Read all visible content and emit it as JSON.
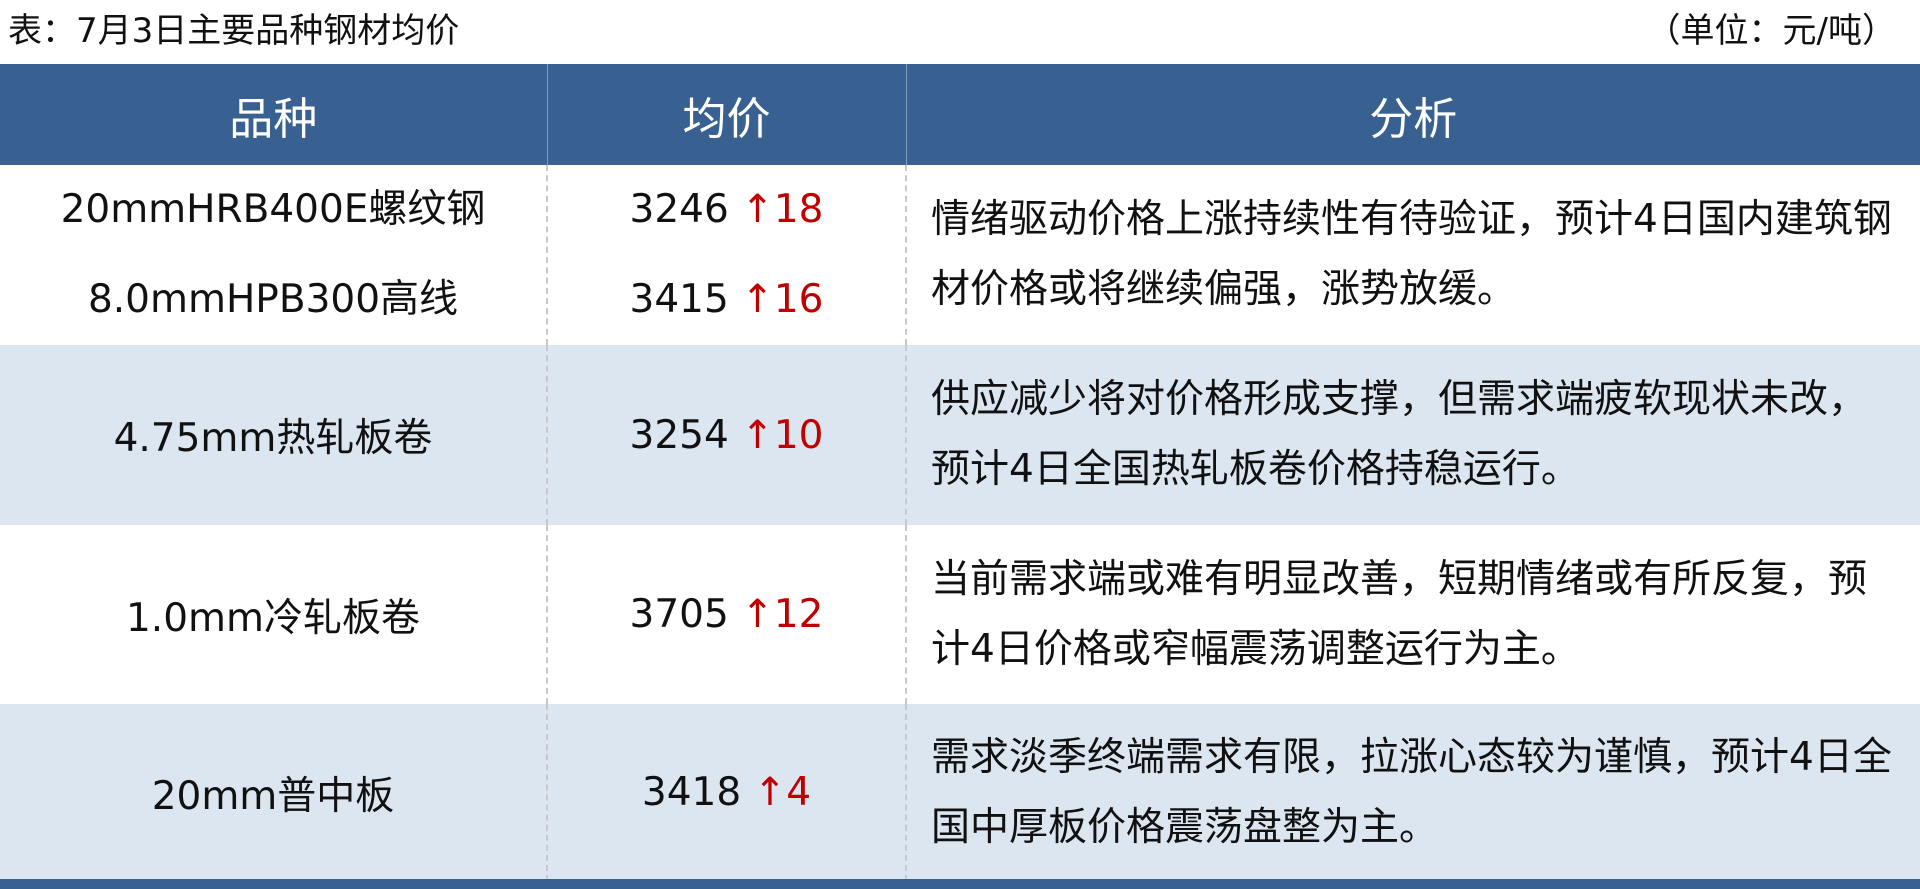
{
  "title": "表：7月3日主要品种钢材均价",
  "unit": "（单位：元/吨）",
  "columns": [
    "品种",
    "均价",
    "分析"
  ],
  "rows": [
    {
      "items": [
        {
          "name": "20mmHRB400E螺纹钢",
          "price": "3246",
          "arrow": "↑",
          "change": "18"
        },
        {
          "name": "8.0mmHPB300高线",
          "price": "3415",
          "arrow": "↑",
          "change": "16"
        }
      ],
      "analysis": "情绪驱动价格上涨持续性有待验证，预计4日国内建筑钢材价格或将继续偏强，涨势放缓。"
    },
    {
      "items": [
        {
          "name": "4.75mm热轧板卷",
          "price": "3254",
          "arrow": "↑",
          "change": "10"
        }
      ],
      "analysis": "供应减少将对价格形成支撑，但需求端疲软现状未改，预计4日全国热轧板卷价格持稳运行。"
    },
    {
      "items": [
        {
          "name": "1.0mm冷轧板卷",
          "price": "3705",
          "arrow": "↑",
          "change": "12"
        }
      ],
      "analysis": "当前需求端或难有明显改善，短期情绪或有所反复，预计4日价格或窄幅震荡调整运行为主。"
    },
    {
      "items": [
        {
          "name": "20mm普中板",
          "price": "3418",
          "arrow": "↑",
          "change": "4"
        }
      ],
      "analysis": "需求淡季终端需求有限，拉涨心态较为谨慎，预计4日全国中厚板价格震荡盘整为主。"
    }
  ],
  "colors": {
    "header": "#386192",
    "stripe": "#dce6f1",
    "up": "#c00000"
  }
}
